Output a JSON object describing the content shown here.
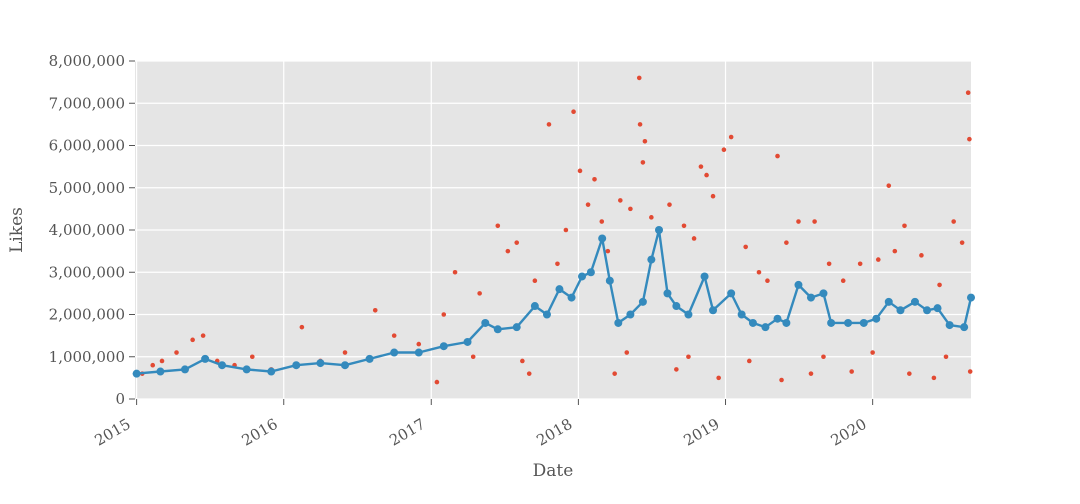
{
  "chart_data": {
    "type": "scatter",
    "title": "",
    "xlabel": "Date",
    "ylabel": "Likes",
    "xlim": [
      "2014-12-28",
      "2020-09-01"
    ],
    "ylim": [
      0,
      8000000
    ],
    "y_ticks": [
      0,
      1000000,
      2000000,
      3000000,
      4000000,
      5000000,
      6000000,
      7000000,
      8000000
    ],
    "y_tick_labels": [
      "0",
      "1,000,000",
      "2,000,000",
      "3,000,000",
      "4,000,000",
      "5,000,000",
      "6,000,000",
      "7,000,000",
      "8,000,000"
    ],
    "x_ticks": [
      "2015-01-01",
      "2016-01-01",
      "2017-01-01",
      "2018-01-01",
      "2019-01-01",
      "2020-01-01"
    ],
    "x_tick_labels": [
      "2015",
      "2016",
      "2017",
      "2018",
      "2019",
      "2020"
    ],
    "grid": true,
    "background": "#e5e5e5",
    "series": [
      {
        "kind": "scatter",
        "color": "#e24a33",
        "points": [
          [
            "2015-01-15",
            600000
          ],
          [
            "2015-02-10",
            800000
          ],
          [
            "2015-03-05",
            900000
          ],
          [
            "2015-04-10",
            1100000
          ],
          [
            "2015-05-20",
            1400000
          ],
          [
            "2015-06-15",
            1500000
          ],
          [
            "2015-07-20",
            900000
          ],
          [
            "2015-09-01",
            800000
          ],
          [
            "2015-10-15",
            1000000
          ],
          [
            "2015-12-01",
            700000
          ],
          [
            "2016-02-15",
            1700000
          ],
          [
            "2016-04-01",
            900000
          ],
          [
            "2016-06-01",
            1100000
          ],
          [
            "2016-08-15",
            2100000
          ],
          [
            "2016-10-01",
            1500000
          ],
          [
            "2016-12-01",
            1300000
          ],
          [
            "2017-02-01",
            2000000
          ],
          [
            "2017-03-01",
            3000000
          ],
          [
            "2017-05-01",
            2500000
          ],
          [
            "2017-06-15",
            4100000
          ],
          [
            "2017-07-10",
            3500000
          ],
          [
            "2017-08-01",
            3700000
          ],
          [
            "2017-09-15",
            2800000
          ],
          [
            "2017-10-20",
            6500000
          ],
          [
            "2017-11-10",
            3200000
          ],
          [
            "2017-12-01",
            4000000
          ],
          [
            "2017-12-20",
            6800000
          ],
          [
            "2018-01-05",
            5400000
          ],
          [
            "2018-01-25",
            4600000
          ],
          [
            "2018-02-10",
            5200000
          ],
          [
            "2018-02-28",
            4200000
          ],
          [
            "2018-03-15",
            3500000
          ],
          [
            "2018-04-15",
            4700000
          ],
          [
            "2018-05-10",
            4500000
          ],
          [
            "2018-06-01",
            7600000
          ],
          [
            "2018-06-03",
            6500000
          ],
          [
            "2018-06-10",
            5600000
          ],
          [
            "2018-06-15",
            6100000
          ],
          [
            "2018-07-01",
            4300000
          ],
          [
            "2018-08-15",
            4600000
          ],
          [
            "2018-09-20",
            4100000
          ],
          [
            "2018-10-15",
            3800000
          ],
          [
            "2018-11-01",
            5500000
          ],
          [
            "2018-11-15",
            5300000
          ],
          [
            "2018-12-01",
            4800000
          ],
          [
            "2018-12-28",
            5900000
          ],
          [
            "2019-01-15",
            6200000
          ],
          [
            "2019-02-20",
            3600000
          ],
          [
            "2019-03-25",
            3000000
          ],
          [
            "2019-04-15",
            2800000
          ],
          [
            "2019-05-10",
            5750000
          ],
          [
            "2019-06-01",
            3700000
          ],
          [
            "2019-07-01",
            4200000
          ],
          [
            "2019-08-10",
            4200000
          ],
          [
            "2019-09-15",
            3200000
          ],
          [
            "2019-10-20",
            2800000
          ],
          [
            "2019-12-01",
            3200000
          ],
          [
            "2020-01-15",
            3300000
          ],
          [
            "2020-02-10",
            5050000
          ],
          [
            "2020-02-25",
            3500000
          ],
          [
            "2020-03-20",
            4100000
          ],
          [
            "2020-05-01",
            3400000
          ],
          [
            "2020-06-15",
            2700000
          ],
          [
            "2020-07-20",
            4200000
          ],
          [
            "2020-08-10",
            3700000
          ],
          [
            "2020-08-25",
            7250000
          ],
          [
            "2020-08-28",
            6150000
          ],
          [
            "2017-01-15",
            400000
          ],
          [
            "2017-09-01",
            600000
          ],
          [
            "2018-04-01",
            600000
          ],
          [
            "2018-09-01",
            700000
          ],
          [
            "2018-12-15",
            500000
          ],
          [
            "2019-05-20",
            450000
          ],
          [
            "2019-08-01",
            600000
          ],
          [
            "2019-11-10",
            650000
          ],
          [
            "2020-04-01",
            600000
          ],
          [
            "2020-06-01",
            500000
          ],
          [
            "2020-08-30",
            650000
          ],
          [
            "2017-04-15",
            1000000
          ],
          [
            "2017-08-15",
            900000
          ],
          [
            "2018-05-01",
            1100000
          ],
          [
            "2018-10-01",
            1000000
          ],
          [
            "2019-03-01",
            900000
          ],
          [
            "2019-09-01",
            1000000
          ],
          [
            "2020-01-01",
            1100000
          ],
          [
            "2020-07-01",
            1000000
          ]
        ]
      },
      {
        "kind": "line",
        "color": "#348abd",
        "points": [
          [
            "2015-01-01",
            600000
          ],
          [
            "2015-03-01",
            650000
          ],
          [
            "2015-05-01",
            700000
          ],
          [
            "2015-06-20",
            950000
          ],
          [
            "2015-08-01",
            800000
          ],
          [
            "2015-10-01",
            700000
          ],
          [
            "2015-12-01",
            650000
          ],
          [
            "2016-02-01",
            800000
          ],
          [
            "2016-04-01",
            850000
          ],
          [
            "2016-06-01",
            800000
          ],
          [
            "2016-08-01",
            950000
          ],
          [
            "2016-10-01",
            1100000
          ],
          [
            "2016-12-01",
            1100000
          ],
          [
            "2017-02-01",
            1250000
          ],
          [
            "2017-04-01",
            1350000
          ],
          [
            "2017-05-15",
            1800000
          ],
          [
            "2017-06-15",
            1650000
          ],
          [
            "2017-08-01",
            1700000
          ],
          [
            "2017-09-15",
            2200000
          ],
          [
            "2017-10-15",
            2000000
          ],
          [
            "2017-11-15",
            2600000
          ],
          [
            "2017-12-15",
            2400000
          ],
          [
            "2018-01-10",
            2900000
          ],
          [
            "2018-02-01",
            3000000
          ],
          [
            "2018-03-01",
            3800000
          ],
          [
            "2018-03-20",
            2800000
          ],
          [
            "2018-04-10",
            1800000
          ],
          [
            "2018-05-10",
            2000000
          ],
          [
            "2018-06-10",
            2300000
          ],
          [
            "2018-07-01",
            3300000
          ],
          [
            "2018-07-20",
            4000000
          ],
          [
            "2018-08-10",
            2500000
          ],
          [
            "2018-09-01",
            2200000
          ],
          [
            "2018-10-01",
            2000000
          ],
          [
            "2018-11-10",
            2900000
          ],
          [
            "2018-12-01",
            2100000
          ],
          [
            "2019-01-15",
            2500000
          ],
          [
            "2019-02-10",
            2000000
          ],
          [
            "2019-03-10",
            1800000
          ],
          [
            "2019-04-10",
            1700000
          ],
          [
            "2019-05-10",
            1900000
          ],
          [
            "2019-06-01",
            1800000
          ],
          [
            "2019-07-01",
            2700000
          ],
          [
            "2019-08-01",
            2400000
          ],
          [
            "2019-09-01",
            2500000
          ],
          [
            "2019-09-20",
            1800000
          ],
          [
            "2019-11-01",
            1800000
          ],
          [
            "2019-12-10",
            1800000
          ],
          [
            "2020-01-10",
            1900000
          ],
          [
            "2020-02-10",
            2300000
          ],
          [
            "2020-03-10",
            2100000
          ],
          [
            "2020-04-15",
            2300000
          ],
          [
            "2020-05-15",
            2100000
          ],
          [
            "2020-06-10",
            2150000
          ],
          [
            "2020-07-10",
            1750000
          ],
          [
            "2020-08-15",
            1700000
          ],
          [
            "2020-09-01",
            2400000
          ]
        ]
      }
    ]
  }
}
